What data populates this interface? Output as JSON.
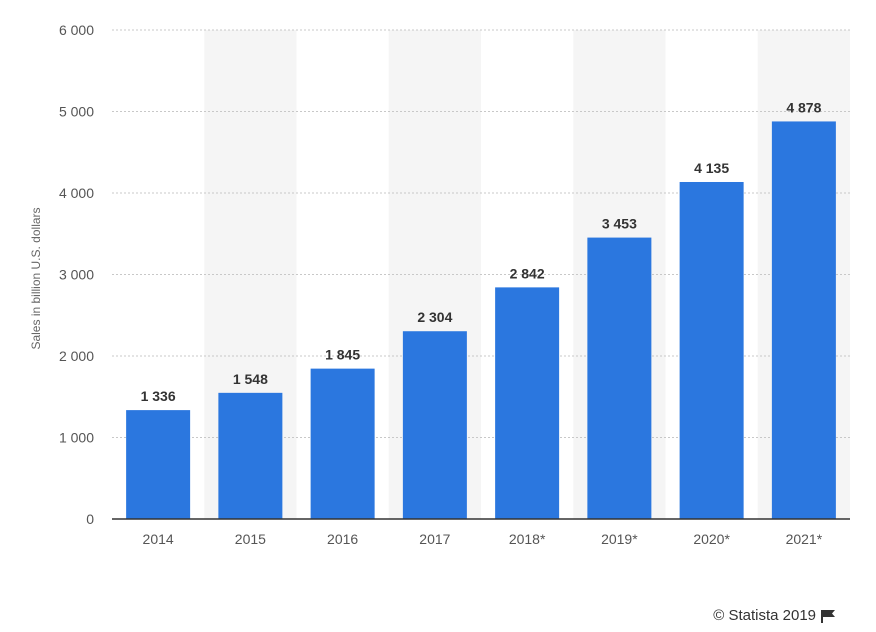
{
  "chart_data": {
    "type": "bar",
    "categories": [
      "2014",
      "2015",
      "2016",
      "2017",
      "2018*",
      "2019*",
      "2020*",
      "2021*"
    ],
    "values": [
      1336,
      1548,
      1845,
      2304,
      2842,
      3453,
      4135,
      4878
    ],
    "value_labels": [
      "1 336",
      "1 548",
      "1 845",
      "2 304",
      "2 842",
      "3 453",
      "4 135",
      "4 878"
    ],
    "ylabel": "Sales in billion U.S. dollars",
    "xlabel": "",
    "title": "",
    "ylim": [
      0,
      6000
    ],
    "yticks": [
      0,
      1000,
      2000,
      3000,
      4000,
      5000,
      6000
    ],
    "ytick_labels": [
      "0",
      "1 000",
      "2 000",
      "3 000",
      "4 000",
      "5 000",
      "6 000"
    ],
    "grid": true,
    "bar_color": "#2b77df",
    "band_color": "#f5f5f5",
    "grid_color": "#c8c8c8"
  },
  "footer": {
    "credit": "© Statista 2019",
    "flag_icon": "flag-icon"
  }
}
